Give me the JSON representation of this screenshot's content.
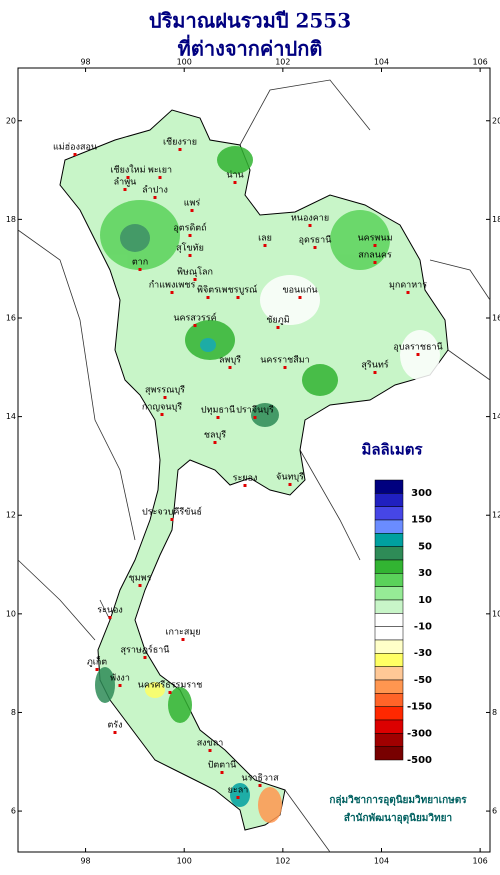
{
  "map": {
    "title": "ปริมาณฝนรวมปี 2553",
    "subtitle": "ที่ต่างจากค่าปกติ",
    "xlim": [
      96.63,
      106.2
    ],
    "ylim": [
      5.17,
      21.07
    ],
    "xticks": [
      98,
      100,
      102,
      104,
      106
    ],
    "yticks": [
      6,
      8,
      10,
      12,
      14,
      16,
      18,
      20
    ],
    "legend": {
      "title": "มิลลิเมตร",
      "colors": [
        "#00007f",
        "#2020c0",
        "#4646e6",
        "#6a8cff",
        "#00a0a0",
        "#2e8b57",
        "#32b432",
        "#5ad25a",
        "#96eb96",
        "#c8f5c8",
        "#ffffff",
        "#ffffff",
        "#ffffc8",
        "#ffff64",
        "#ffc896",
        "#ff9650",
        "#ff6428",
        "#ff2800",
        "#dc0000",
        "#a00000",
        "#780000"
      ],
      "labels": [
        300,
        150,
        50,
        30,
        10,
        -10,
        -30,
        -50,
        -150,
        -300,
        -500
      ]
    },
    "places": [
      "เชียงราย",
      "แม่ฮ่องสอน",
      "เชียงใหม่",
      "พะเยา",
      "ลำพูน",
      "น่าน",
      "ลำปาง",
      "แพร่",
      "อุตรดิตถ์",
      "ตาก",
      "สุโขทัย",
      "พิษณุโลก",
      "กำแพงเพชร",
      "พิจิตร",
      "เพชรบูรณ์",
      "นครสวรรค์",
      "หนองคาย",
      "อุดรธานี",
      "นครพนม",
      "สกลนคร",
      "มุกดาหาร",
      "ขอนแก่น",
      "ชัยภูมิ",
      "เลย",
      "ลพบุรี",
      "นครราชสีมา",
      "อุบลราชธานี",
      "สุรินทร์",
      "กาญจนบุรี",
      "สุพรรณบุรี",
      "ปทุมธานี",
      "ปราจีนบุรี",
      "ชลบุรี",
      "ระยอง",
      "จันทบุรี",
      "ประจวบคีรีขันธ์",
      "ชุมพร",
      "ระนอง",
      "สุราษฎร์ธานี",
      "เกาะสมุย",
      "พังงา",
      "ภูเก็ต",
      "นครศรีธรรมราช",
      "ตรัง",
      "สงขลา",
      "ปัตตานี",
      "นราธิวาส",
      "ยะลา"
    ],
    "credits": [
      "กลุ่มวิชาการอุตุนิยมวิทยาเกษตร",
      "สำนักพัฒนาอุตุนิยมวิทยา"
    ]
  }
}
